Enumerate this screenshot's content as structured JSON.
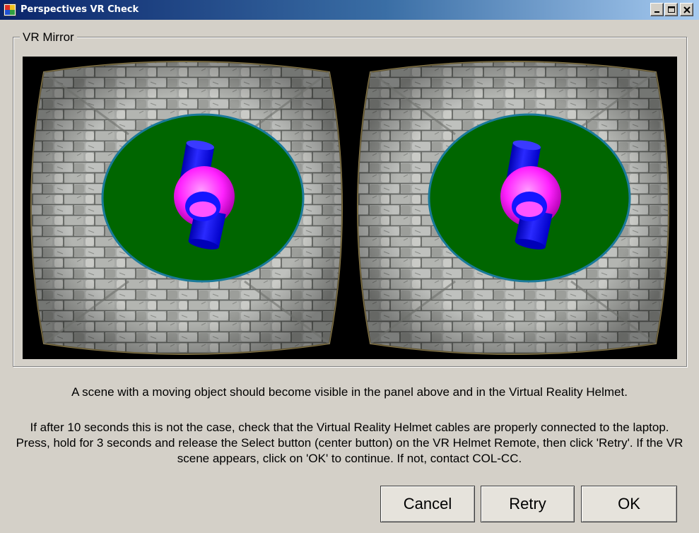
{
  "window": {
    "title": "Perspectives VR Check",
    "controls": [
      "minimize-icon",
      "maximize-icon",
      "close-icon"
    ]
  },
  "group": {
    "legend": "VR Mirror"
  },
  "message": {
    "line1": "A scene with a moving object should become visible in the panel above and in the Virtual Reality Helmet.",
    "line2": "If after 10 seconds this is not the case, check that the Virtual Reality Helmet cables are properly connected to the laptop. Press, hold for 3 seconds and release the Select button (center button) on the VR Helmet Remote, then click 'Retry'. If the VR scene appears, click on 'OK' to continue. If not, contact COL-CC."
  },
  "buttons": {
    "cancel": "Cancel",
    "retry": "Retry",
    "ok": "OK"
  },
  "colors": {
    "title_gradient_start": "#0a246a",
    "title_gradient_end": "#a6caf0",
    "window_bg": "#d4d0c8",
    "floor_green": "#006600",
    "sphere_magenta": "#ff22ff",
    "cylinder_blue": "#1010ff",
    "wall_stone": "#a8aaa8"
  }
}
